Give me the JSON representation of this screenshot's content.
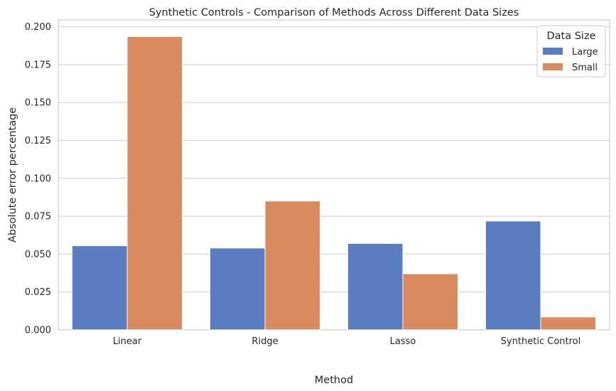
{
  "chart_data": {
    "type": "bar",
    "title": "Synthetic Controls - Comparison of Methods Across Different Data Sizes",
    "xlabel": "Method",
    "ylabel": "Absolute error percentage",
    "categories": [
      "Linear",
      "Ridge",
      "Lasso",
      "Synthetic Control"
    ],
    "series": [
      {
        "name": "Large",
        "values": [
          0.0555,
          0.054,
          0.057,
          0.0718
        ],
        "color": "#5a7dc1"
      },
      {
        "name": "Small",
        "values": [
          0.1935,
          0.085,
          0.037,
          0.0085
        ],
        "color": "#d98a5e"
      }
    ],
    "ylim": [
      0,
      0.2045
    ],
    "yticks": [
      "0.000",
      "0.025",
      "0.050",
      "0.075",
      "0.100",
      "0.125",
      "0.150",
      "0.175",
      "0.200"
    ],
    "grid": true,
    "legend": {
      "title": "Data Size",
      "placement": "top-right"
    }
  }
}
